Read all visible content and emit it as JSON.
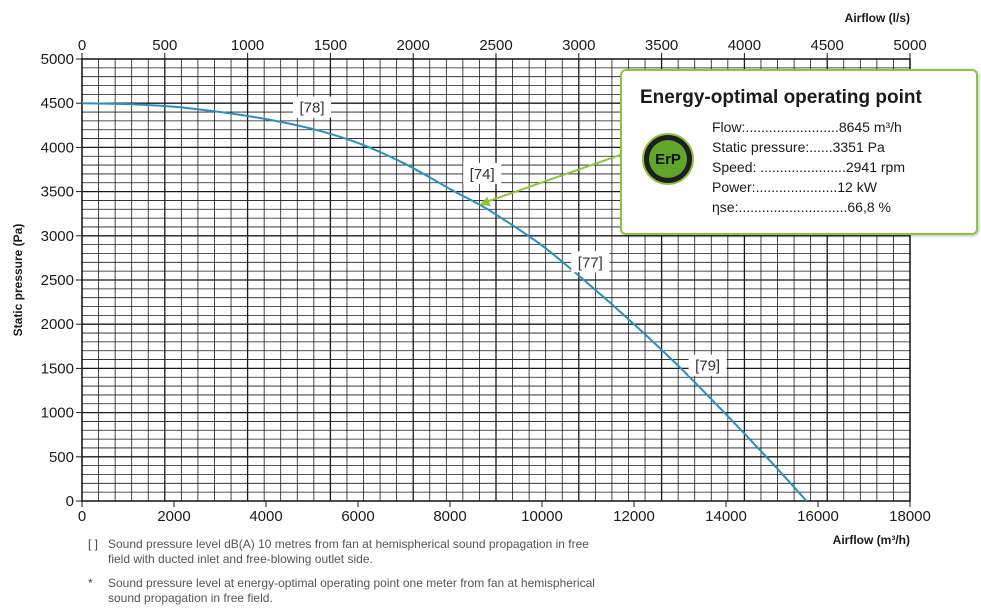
{
  "chart_data": {
    "type": "line",
    "top_axis_label": "Airflow (l/s)",
    "xlabel": "Airflow (m³/h)",
    "ylabel": "Static pressure (Pa)",
    "x_ticks": [
      "0",
      "2000",
      "4000",
      "6000",
      "8000",
      "10000",
      "12000",
      "14000",
      "16000",
      "18000"
    ],
    "x_top_ticks": [
      "0",
      "500",
      "1000",
      "1500",
      "2000",
      "2500",
      "3000",
      "3500",
      "4000",
      "4500",
      "5000"
    ],
    "y_ticks": [
      "0",
      "500",
      "1000",
      "1500",
      "2000",
      "2500",
      "3000",
      "3500",
      "4000",
      "4500",
      "5000"
    ],
    "xlim": [
      0,
      18000
    ],
    "ylim": [
      0,
      5000
    ],
    "grid": true,
    "series": [
      {
        "color": "#2a8fc0",
        "x": [
          0,
          1000,
          2000,
          3000,
          4000,
          5000,
          6000,
          7000,
          8000,
          8645,
          9000,
          10000,
          11000,
          12000,
          13000,
          14000,
          15000,
          15750
        ],
        "y": [
          4500,
          4490,
          4460,
          4400,
          4320,
          4210,
          4050,
          3820,
          3530,
          3351,
          3240,
          2890,
          2460,
          2000,
          1510,
          980,
          430,
          0
        ]
      }
    ],
    "annotations": [
      {
        "text": "[78]",
        "x": 5000,
        "y": 4450
      },
      {
        "text": "[74]",
        "x": 8700,
        "y": 3700
      },
      {
        "text": "[77]",
        "x": 11050,
        "y": 2700
      },
      {
        "text": "[79]",
        "x": 13600,
        "y": 1530
      }
    ],
    "operating_point": {
      "x": 8645,
      "y": 3351
    }
  },
  "erp_box": {
    "title": "Energy-optimal operating point",
    "logo_text": "ErP",
    "rows": [
      {
        "label": "Flow:........................",
        "value": "8645 m³/h"
      },
      {
        "label": "Static pressure:......",
        "value": "3351 Pa"
      },
      {
        "label": "Speed: ......................",
        "value": "2941 rpm"
      },
      {
        "label": "Power:.....................",
        "value": "12 kW"
      },
      {
        "label": "ηse:............................",
        "value": "66,8 %"
      }
    ]
  },
  "notes": [
    {
      "marker": "[ ]",
      "text": "Sound pressure level dB(A) 10 metres from fan at hemispherical sound propagation in free field with ducted inlet and free-blowing outlet side."
    },
    {
      "marker": "*",
      "text": "Sound pressure level at energy-optimal operating point one meter from fan at hemispherical sound propagation in free field."
    }
  ],
  "colors": {
    "curve": "#2a8fc0",
    "grid": "#1a1a1a",
    "erp_border": "#8cc63f",
    "arrow": "#8cc63f"
  }
}
